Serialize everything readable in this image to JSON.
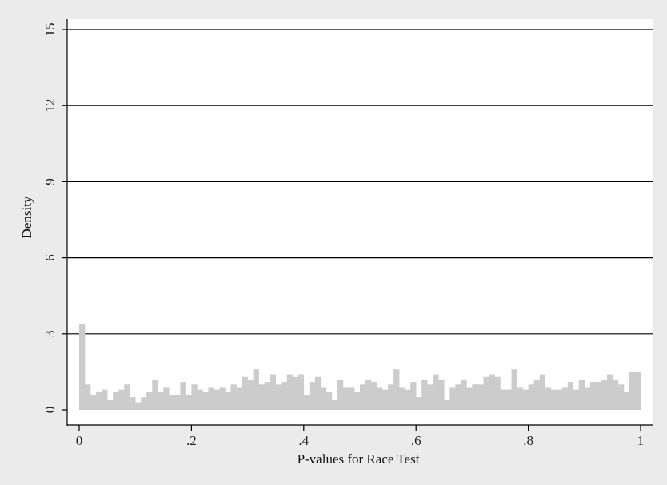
{
  "chart_data": {
    "type": "bar",
    "xlabel": "P-values for Race Test",
    "ylabel": "Density",
    "xlim": [
      0,
      1
    ],
    "ylim": [
      0,
      15
    ],
    "x_ticks": [
      0,
      0.2,
      0.4,
      0.6,
      0.8,
      1
    ],
    "x_tick_labels": [
      "0",
      ".2",
      ".4",
      ".6",
      ".8",
      "1"
    ],
    "y_ticks": [
      0,
      3,
      6,
      9,
      12,
      15
    ],
    "y_tick_labels": [
      "0",
      "3",
      "6",
      "9",
      "12",
      "15"
    ],
    "grid": "horizontal",
    "bin_width": 0.01,
    "values": [
      3.4,
      1.0,
      0.6,
      0.7,
      0.8,
      0.4,
      0.7,
      0.8,
      1.0,
      0.5,
      0.3,
      0.5,
      0.7,
      1.2,
      0.7,
      0.9,
      0.6,
      0.6,
      1.1,
      0.6,
      1.0,
      0.8,
      0.7,
      0.9,
      0.8,
      0.9,
      0.7,
      1.0,
      0.9,
      1.3,
      1.2,
      1.6,
      1.0,
      1.1,
      1.4,
      1.0,
      1.1,
      1.4,
      1.3,
      1.4,
      0.6,
      1.1,
      1.3,
      0.9,
      0.7,
      0.4,
      1.2,
      0.9,
      0.9,
      0.7,
      1.0,
      1.2,
      1.1,
      0.9,
      0.8,
      1.0,
      1.6,
      0.9,
      0.8,
      1.1,
      0.5,
      1.2,
      1.0,
      1.4,
      1.2,
      0.4,
      0.9,
      1.0,
      1.2,
      0.9,
      1.0,
      1.0,
      1.3,
      1.4,
      1.3,
      0.8,
      0.8,
      1.6,
      0.9,
      0.8,
      1.0,
      1.2,
      1.4,
      0.9,
      0.8,
      0.8,
      0.9,
      1.1,
      0.8,
      1.2,
      0.9,
      1.1,
      1.1,
      1.2,
      1.4,
      1.2,
      1.0,
      0.7,
      1.5,
      1.5
    ],
    "colors": {
      "bar": "#cccccc",
      "grid": "#000000",
      "plot_bg": "#ffffff",
      "page_bg": "#ebebeb"
    }
  }
}
